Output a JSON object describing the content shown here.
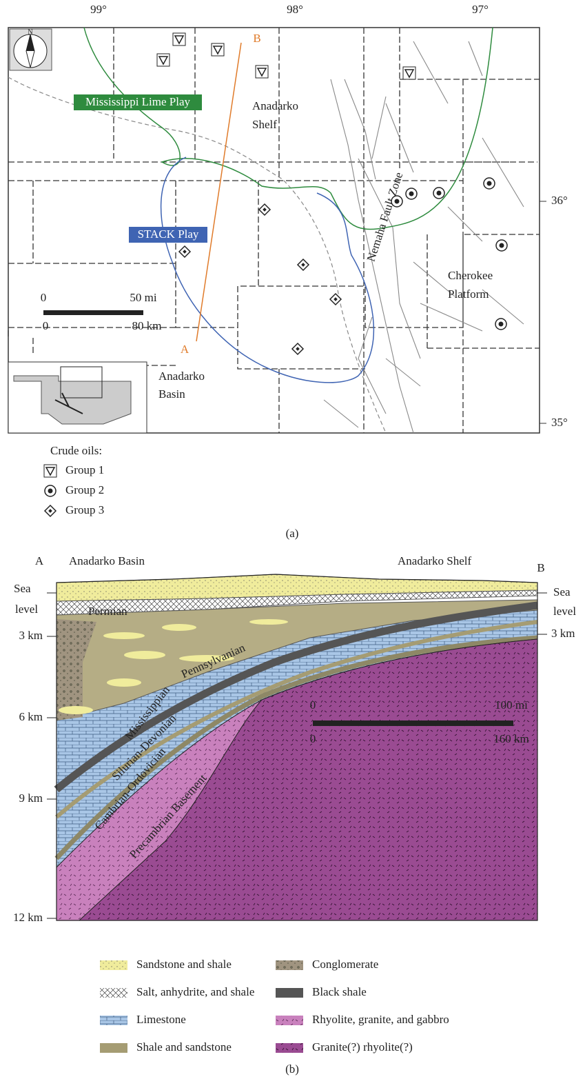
{
  "map": {
    "longitudes": [
      "99°",
      "98°",
      "97°"
    ],
    "latitudes": [
      "36°",
      "35°"
    ],
    "plays": [
      "Mississippi Lime Play",
      "STACK Play"
    ],
    "shelf": [
      "Anadarko",
      "Shelf"
    ],
    "fault_zone": "Nemaha Fault Zone",
    "platform": [
      "Cherokee",
      "Platform"
    ],
    "basin": [
      "Anadarko",
      "Basin"
    ],
    "section_ends": [
      "A",
      "B"
    ],
    "scale": [
      "0",
      "50 mi",
      "0",
      "80 km"
    ],
    "legend": {
      "title": "Crude oils:",
      "items": [
        "Group 1",
        "Group 2",
        "Group 3"
      ]
    },
    "caption": "(a)"
  },
  "section": {
    "ends": [
      "A",
      "B"
    ],
    "regions": [
      "Anadarko Basin",
      "Anadarko Shelf"
    ],
    "depth_left": [
      [
        "Sea",
        "level"
      ],
      "3 km",
      "6 km",
      "9 km",
      "12 km"
    ],
    "depth_right": [
      [
        "Sea",
        "level"
      ],
      "3 km"
    ],
    "units": [
      "Permian",
      "Pennsylvanian",
      "Mississippian",
      "Silurian-Devonian",
      "Cambrian-Ordovician",
      "Precambrian Basement"
    ],
    "scale": [
      "0",
      "100 mi",
      "0",
      "160 km"
    ],
    "legend": [
      "Sandstone and shale",
      "Salt, anhydrite, and shale",
      "Limestone",
      "Shale and sandstone",
      "Conglomerate",
      "Black shale",
      "Rhyolite, granite, and gabbro",
      "Granite(?) rhyolite(?)"
    ],
    "caption": "(b)"
  }
}
